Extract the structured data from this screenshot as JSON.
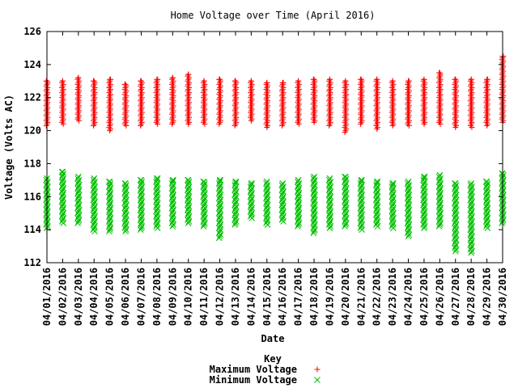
{
  "chart_data": {
    "type": "scatter",
    "title": "Home Voltage over Time (April 2016)",
    "xlabel": "Date",
    "ylabel": "Voltage (Volts AC)",
    "ylim": [
      112,
      126
    ],
    "yticks": [
      "112",
      "114",
      "116",
      "118",
      "120",
      "122",
      "124",
      "126"
    ],
    "categories": [
      "04/01/2016",
      "04/02/2016",
      "04/03/2016",
      "04/04/2016",
      "04/05/2016",
      "04/06/2016",
      "04/07/2016",
      "04/08/2016",
      "04/09/2016",
      "04/10/2016",
      "04/11/2016",
      "04/12/2016",
      "04/13/2016",
      "04/14/2016",
      "04/15/2016",
      "04/16/2016",
      "04/17/2016",
      "04/18/2016",
      "04/19/2016",
      "04/20/2016",
      "04/21/2016",
      "04/22/2016",
      "04/23/2016",
      "04/24/2016",
      "04/25/2016",
      "04/26/2016",
      "04/27/2016",
      "04/28/2016",
      "04/29/2016",
      "04/30/2016"
    ],
    "legend_title": "Key",
    "legend_position": "bottom-center",
    "grid": false,
    "series": [
      {
        "name": "Maximum Voltage",
        "marker": "plus",
        "color": "#ff0000",
        "low": [
          120.3,
          120.4,
          120.6,
          120.3,
          120.0,
          120.3,
          120.3,
          120.4,
          120.4,
          120.4,
          120.4,
          120.4,
          120.3,
          120.6,
          120.2,
          120.3,
          120.4,
          120.5,
          120.3,
          119.9,
          120.4,
          120.1,
          120.3,
          120.3,
          120.4,
          120.4,
          120.2,
          120.2,
          120.3,
          120.5
        ],
        "high": [
          123.0,
          123.0,
          123.2,
          123.0,
          123.1,
          122.8,
          123.0,
          123.1,
          123.2,
          123.4,
          123.0,
          123.1,
          123.0,
          123.0,
          122.9,
          122.9,
          123.0,
          123.1,
          123.1,
          123.0,
          123.1,
          123.1,
          123.0,
          123.0,
          123.1,
          123.5,
          123.1,
          123.1,
          123.1,
          124.5
        ]
      },
      {
        "name": "Minimum Voltage",
        "marker": "x",
        "color": "#00c000",
        "low": [
          114.1,
          114.4,
          114.4,
          113.9,
          113.9,
          113.9,
          114.0,
          114.1,
          114.2,
          114.4,
          114.2,
          113.5,
          114.3,
          114.7,
          114.3,
          114.5,
          114.2,
          113.8,
          114.1,
          114.2,
          114.0,
          114.2,
          114.1,
          113.6,
          114.1,
          114.2,
          112.7,
          112.6,
          114.1,
          114.4
        ],
        "high": [
          117.1,
          117.5,
          117.2,
          117.1,
          116.9,
          116.8,
          117.0,
          117.1,
          117.0,
          117.0,
          116.9,
          117.0,
          116.9,
          116.8,
          116.9,
          116.8,
          117.0,
          117.2,
          117.1,
          117.2,
          117.0,
          116.9,
          116.8,
          116.9,
          117.2,
          117.3,
          116.8,
          116.8,
          116.9,
          117.4
        ]
      }
    ]
  }
}
